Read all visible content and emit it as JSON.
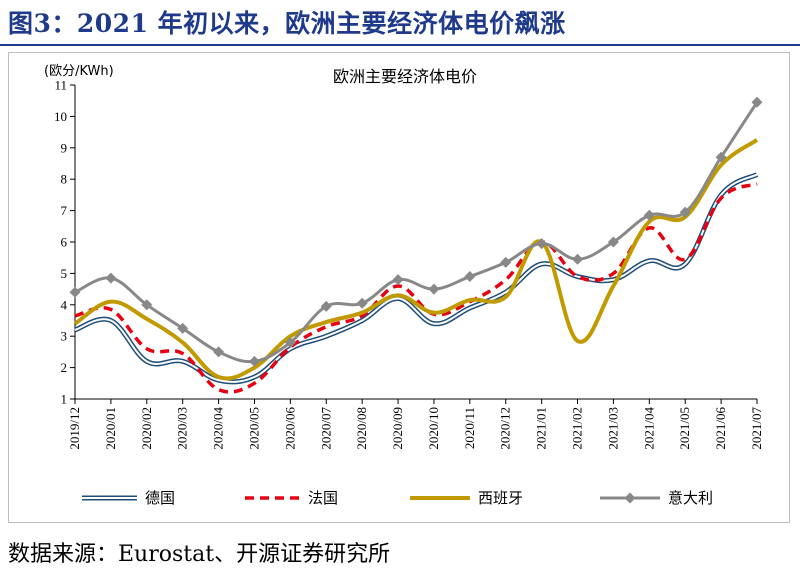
{
  "figure": {
    "title": "图3：2021 年初以来，欧洲主要经济体电价飙涨",
    "source": "数据来源：Eurostat、开源证券研究所"
  },
  "chart_data": {
    "type": "line",
    "title": "欧洲主要经济体电价",
    "ylabel": "(欧分/KWh)",
    "xlabel": "",
    "ylim": [
      1,
      11
    ],
    "yticks": [
      1,
      2,
      3,
      4,
      5,
      6,
      7,
      8,
      9,
      10,
      11
    ],
    "grid": false,
    "legend_position": "bottom",
    "categories": [
      "2019/12",
      "2020/01",
      "2020/02",
      "2020/03",
      "2020/04",
      "2020/05",
      "2020/06",
      "2020/07",
      "2020/08",
      "2020/09",
      "2020/10",
      "2020/11",
      "2020/12",
      "2021/01",
      "2021/02",
      "2021/03",
      "2021/04",
      "2021/05",
      "2021/06",
      "2021/07"
    ],
    "series": [
      {
        "name": "德国",
        "style": "double-line",
        "color": "#1f4e79",
        "values": [
          3.2,
          3.5,
          2.2,
          2.2,
          1.6,
          1.7,
          2.6,
          3.0,
          3.5,
          4.2,
          3.4,
          3.9,
          4.4,
          5.3,
          4.9,
          4.8,
          5.4,
          5.3,
          7.5,
          8.15
        ]
      },
      {
        "name": "法国",
        "style": "dashed",
        "color": "#e60012",
        "values": [
          3.65,
          3.85,
          2.6,
          2.45,
          1.3,
          1.5,
          2.65,
          3.3,
          3.65,
          4.6,
          3.7,
          4.1,
          4.8,
          6.0,
          4.9,
          5.0,
          6.45,
          5.45,
          7.4,
          7.85
        ]
      },
      {
        "name": "西班牙",
        "style": "solid-thick",
        "color": "#c19a00",
        "values": [
          3.4,
          4.1,
          3.55,
          2.8,
          1.7,
          2.0,
          3.0,
          3.45,
          3.75,
          4.3,
          3.75,
          4.15,
          4.25,
          6.0,
          2.85,
          4.6,
          6.65,
          6.8,
          8.45,
          9.25
        ]
      },
      {
        "name": "意大利",
        "style": "line-diamond",
        "color": "#888888",
        "values": [
          4.4,
          4.85,
          4.0,
          3.25,
          2.5,
          2.2,
          2.8,
          3.95,
          4.05,
          4.8,
          4.5,
          4.9,
          5.35,
          5.95,
          5.45,
          6.0,
          6.85,
          6.95,
          8.7,
          10.45
        ]
      }
    ]
  }
}
